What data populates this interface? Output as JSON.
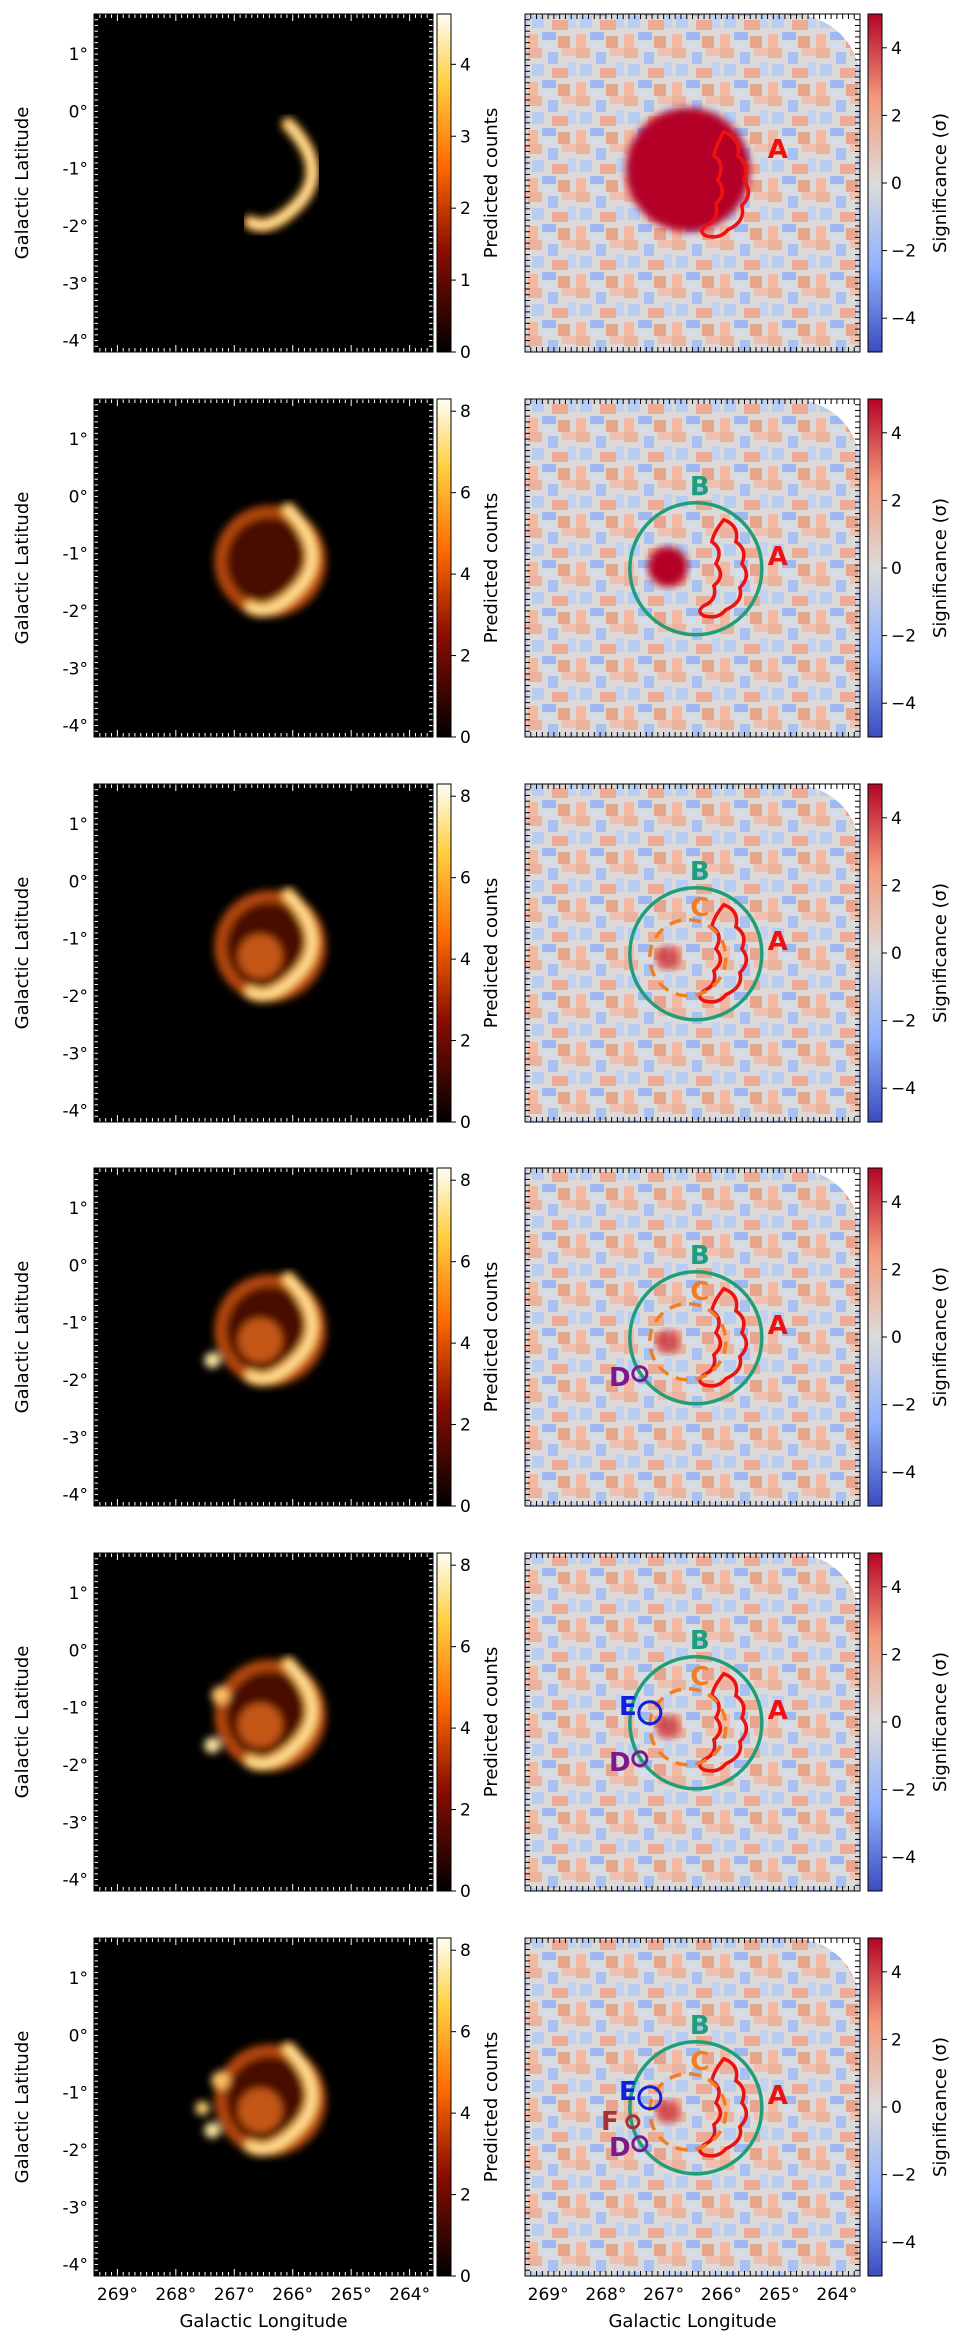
{
  "rows": [
    {
      "counts_max": 4,
      "components": [
        "A"
      ]
    },
    {
      "counts_max": 8,
      "components": [
        "A",
        "B"
      ]
    },
    {
      "counts_max": 8,
      "components": [
        "A",
        "B",
        "C"
      ]
    },
    {
      "counts_max": 8,
      "components": [
        "A",
        "B",
        "C",
        "D"
      ]
    },
    {
      "counts_max": 8,
      "components": [
        "A",
        "B",
        "C",
        "D",
        "E"
      ]
    },
    {
      "counts_max": 8,
      "components": [
        "A",
        "B",
        "C",
        "D",
        "E",
        "F"
      ]
    }
  ],
  "chart_data": [
    {
      "type": "heatmap",
      "title": "",
      "xlabel": "Galactic Longitude",
      "ylabel": "Galactic Latitude",
      "colorbar_label": "Predicted counts",
      "x_ticks": [
        "269°",
        "268°",
        "267°",
        "266°",
        "265°",
        "264°"
      ],
      "y_ticks": [
        "1°",
        "0°",
        "-1°",
        "-2°",
        "-3°",
        "-4°"
      ],
      "xlim": [
        269.4,
        263.6
      ],
      "ylim": [
        -4.2,
        1.7
      ],
      "colormap": "afmhot",
      "colorbar_ticks": {
        "row1": [
          0,
          1,
          2,
          3,
          4
        ],
        "rows2to6": [
          0,
          2,
          4,
          6,
          8
        ]
      }
    },
    {
      "type": "heatmap",
      "title": "",
      "xlabel": "Galactic Longitude",
      "ylabel": "",
      "colorbar_label": "Significance (σ)",
      "colorbar_ticks": [
        -4,
        -2,
        0,
        2,
        4
      ],
      "colormap": "coolwarm",
      "clim": [
        -5,
        5
      ],
      "x_ticks": [
        "269°",
        "268°",
        "267°",
        "266°",
        "265°",
        "264°"
      ],
      "component_labels": [
        {
          "name": "A",
          "color": "#ee1111"
        },
        {
          "name": "B",
          "color": "#1f9e78"
        },
        {
          "name": "C",
          "color": "#f07f24"
        },
        {
          "name": "D",
          "color": "#7a1a8c"
        },
        {
          "name": "E",
          "color": "#1020dd"
        },
        {
          "name": "F",
          "color": "#a83232"
        }
      ]
    }
  ],
  "colors": {
    "A": "#ee1111",
    "B": "#1f9e78",
    "C": "#f07f24",
    "D": "#7a1a8c",
    "E": "#1020dd",
    "F": "#a83232"
  }
}
